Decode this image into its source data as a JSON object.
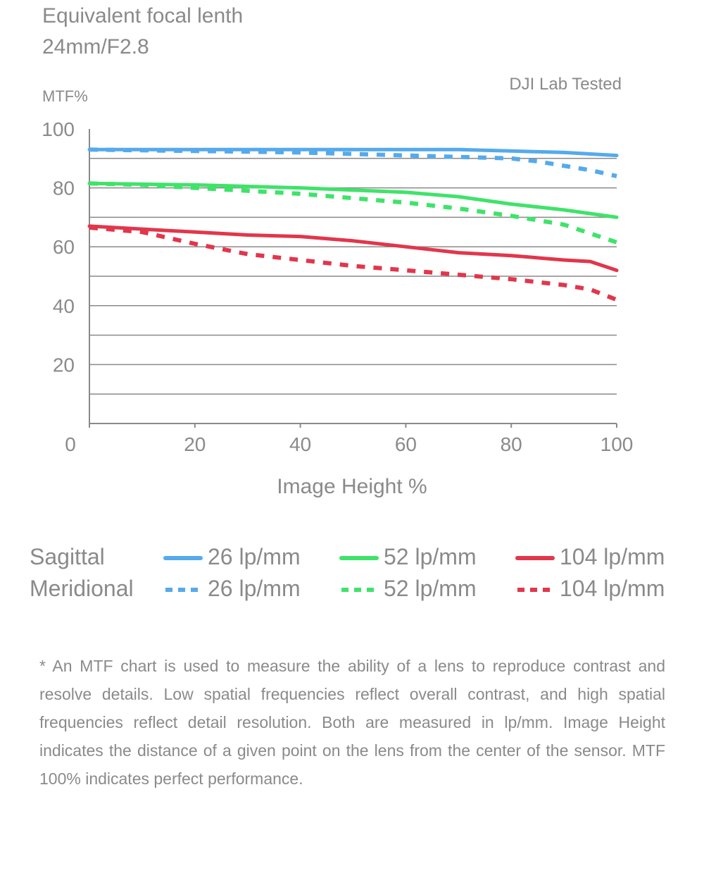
{
  "header": {
    "title_line1": "Equivalent focal lenth",
    "title_line2": "24mm/F2.8",
    "credit": "DJI Lab Tested"
  },
  "colors": {
    "blue": "#55aaec",
    "green": "#3fe36a",
    "red": "#e2364b",
    "grid": "#8a8a8a",
    "text": "#8a8a8a"
  },
  "chart_data": {
    "type": "line",
    "ylabel": "MTF%",
    "xlabel": "Image Height %",
    "xlim": [
      0,
      100
    ],
    "ylim": [
      0,
      100
    ],
    "xticks": [
      "0",
      "20",
      "40",
      "60",
      "80",
      "100"
    ],
    "yticks": [
      "20",
      "40",
      "60",
      "80",
      "100"
    ],
    "grid": "horizontal",
    "series": [
      {
        "name": "26 lp/mm",
        "group": "Sagittal",
        "style": "solid",
        "color": "blue",
        "x": [
          0,
          20,
          40,
          60,
          70,
          80,
          90,
          100
        ],
        "y": [
          93,
          93,
          93,
          93,
          93,
          92.5,
          92,
          91
        ]
      },
      {
        "name": "26 lp/mm",
        "group": "Meridional",
        "style": "dashed",
        "color": "blue",
        "x": [
          0,
          20,
          30,
          40,
          50,
          60,
          70,
          80,
          85,
          90,
          95,
          100
        ],
        "y": [
          93,
          92.5,
          92.3,
          92,
          91.5,
          91,
          90.5,
          90,
          89,
          87.5,
          86,
          84
        ]
      },
      {
        "name": "52 lp/mm",
        "group": "Sagittal",
        "style": "solid",
        "color": "green",
        "x": [
          0,
          20,
          40,
          60,
          70,
          80,
          90,
          100
        ],
        "y": [
          81.5,
          81,
          80,
          78.5,
          77,
          74.5,
          72.5,
          70
        ]
      },
      {
        "name": "52 lp/mm",
        "group": "Meridional",
        "style": "dashed",
        "color": "green",
        "x": [
          0,
          10,
          20,
          30,
          40,
          50,
          60,
          70,
          80,
          90,
          100
        ],
        "y": [
          81.5,
          81,
          80,
          79,
          78,
          76.5,
          75,
          73,
          70.5,
          67.5,
          61.5
        ]
      },
      {
        "name": "104 lp/mm",
        "group": "Sagittal",
        "style": "solid",
        "color": "red",
        "x": [
          0,
          10,
          20,
          30,
          40,
          50,
          60,
          70,
          80,
          90,
          95,
          100
        ],
        "y": [
          67,
          66,
          65,
          64,
          63.5,
          62,
          60,
          58,
          57,
          55.5,
          55,
          52
        ]
      },
      {
        "name": "104 lp/mm",
        "group": "Meridional",
        "style": "dashed",
        "color": "red",
        "x": [
          0,
          10,
          20,
          30,
          40,
          50,
          60,
          70,
          80,
          90,
          95,
          100
        ],
        "y": [
          66.5,
          65,
          61,
          57.5,
          55.5,
          53.5,
          52,
          50.5,
          49,
          47,
          45.5,
          42
        ]
      }
    ]
  },
  "legend": {
    "rows": [
      {
        "label": "Sagittal",
        "entries": [
          {
            "text": "26 lp/mm",
            "color": "blue",
            "style": "solid"
          },
          {
            "text": "52 lp/mm",
            "color": "green",
            "style": "solid"
          },
          {
            "text": "104 lp/mm",
            "color": "red",
            "style": "solid"
          }
        ]
      },
      {
        "label": "Meridional",
        "entries": [
          {
            "text": "26 lp/mm",
            "color": "blue",
            "style": "dashed"
          },
          {
            "text": "52 lp/mm",
            "color": "green",
            "style": "dashed"
          },
          {
            "text": "104 lp/mm",
            "color": "red",
            "style": "dashed"
          }
        ]
      }
    ]
  },
  "footnote": "* An MTF chart is used to measure the ability of a lens to reproduce contrast and resolve details. Low spatial frequencies reflect overall contrast, and high spatial frequencies reflect detail resolution. Both are measured in lp/mm. Image Height indicates the distance of a given point on the lens from the center of the sensor. MTF 100% indicates perfect performance."
}
